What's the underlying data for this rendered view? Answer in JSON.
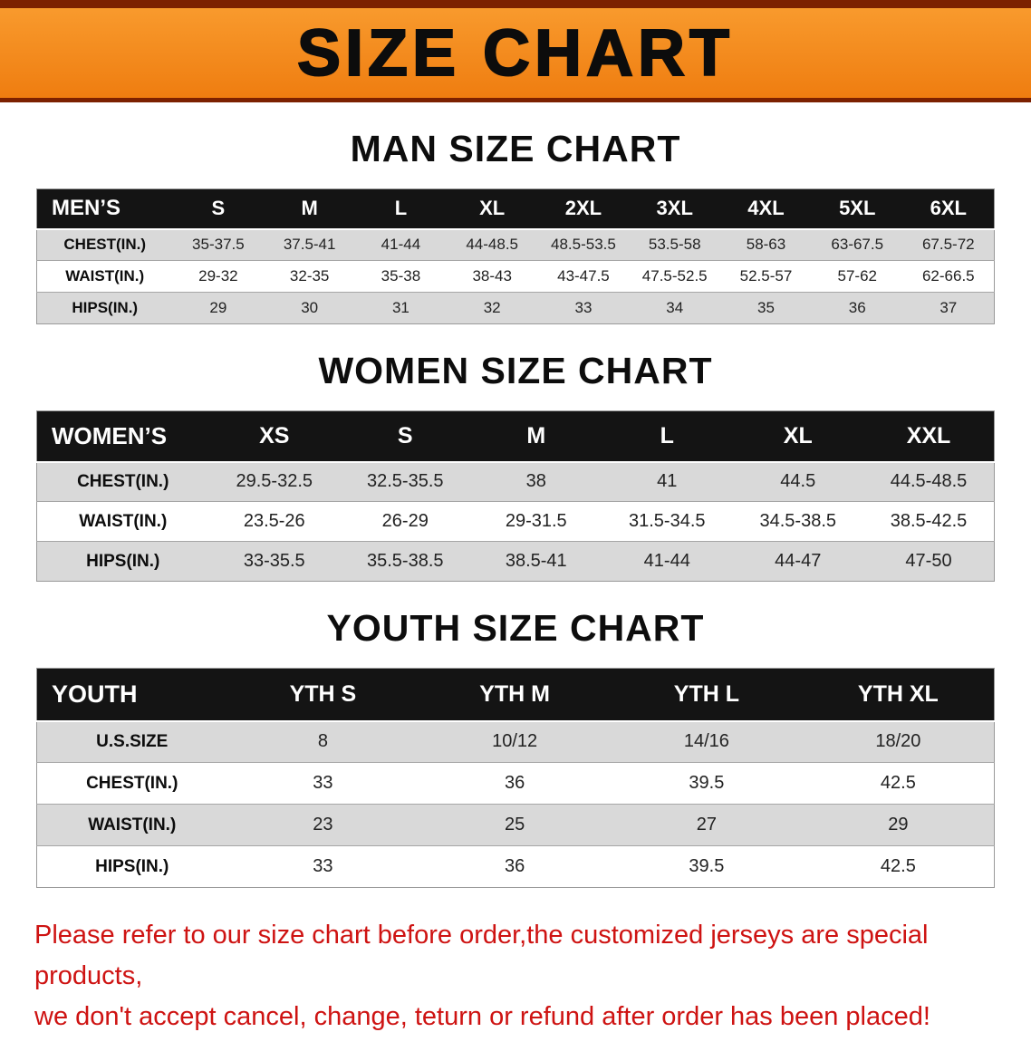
{
  "banner": {
    "title": "SIZE CHART"
  },
  "colors": {
    "banner_bg": "#f5831d",
    "banner_stripe": "#7c2100",
    "header_bg": "#141414",
    "row_alt": "#d9d9d9",
    "note_red": "#ce1312"
  },
  "men": {
    "heading": "MAN SIZE CHART",
    "header": [
      "MEN’S",
      "S",
      "M",
      "L",
      "XL",
      "2XL",
      "3XL",
      "4XL",
      "5XL",
      "6XL"
    ],
    "rows": [
      [
        "CHEST(IN.)",
        "35-37.5",
        "37.5-41",
        "41-44",
        "44-48.5",
        "48.5-53.5",
        "53.5-58",
        "58-63",
        "63-67.5",
        "67.5-72"
      ],
      [
        "WAIST(IN.)",
        "29-32",
        "32-35",
        "35-38",
        "38-43",
        "43-47.5",
        "47.5-52.5",
        "52.5-57",
        "57-62",
        "62-66.5"
      ],
      [
        "HIPS(IN.)",
        "29",
        "30",
        "31",
        "32",
        "33",
        "34",
        "35",
        "36",
        "37"
      ]
    ]
  },
  "women": {
    "heading": "WOMEN SIZE CHART",
    "header": [
      "WOMEN’S",
      "XS",
      "S",
      "M",
      "L",
      "XL",
      "XXL"
    ],
    "rows": [
      [
        "CHEST(IN.)",
        "29.5-32.5",
        "32.5-35.5",
        "38",
        "41",
        "44.5",
        "44.5-48.5"
      ],
      [
        "WAIST(IN.)",
        "23.5-26",
        "26-29",
        "29-31.5",
        "31.5-34.5",
        "34.5-38.5",
        "38.5-42.5"
      ],
      [
        "HIPS(IN.)",
        "33-35.5",
        "35.5-38.5",
        "38.5-41",
        "41-44",
        "44-47",
        "47-50"
      ]
    ]
  },
  "youth": {
    "heading": "YOUTH SIZE CHART",
    "header": [
      "YOUTH",
      "YTH S",
      "YTH M",
      "YTH L",
      "YTH XL"
    ],
    "rows": [
      [
        "U.S.SIZE",
        "8",
        "10/12",
        "14/16",
        "18/20"
      ],
      [
        "CHEST(IN.)",
        "33",
        "36",
        "39.5",
        "42.5"
      ],
      [
        "WAIST(IN.)",
        "23",
        "25",
        "27",
        "29"
      ],
      [
        "HIPS(IN.)",
        "33",
        "36",
        "39.5",
        "42.5"
      ]
    ]
  },
  "note": {
    "line1": "Please refer to our size chart before order,the customized jerseys are special products,",
    "line2": "we don't accept cancel, change, teturn or refund after order has been placed!"
  }
}
